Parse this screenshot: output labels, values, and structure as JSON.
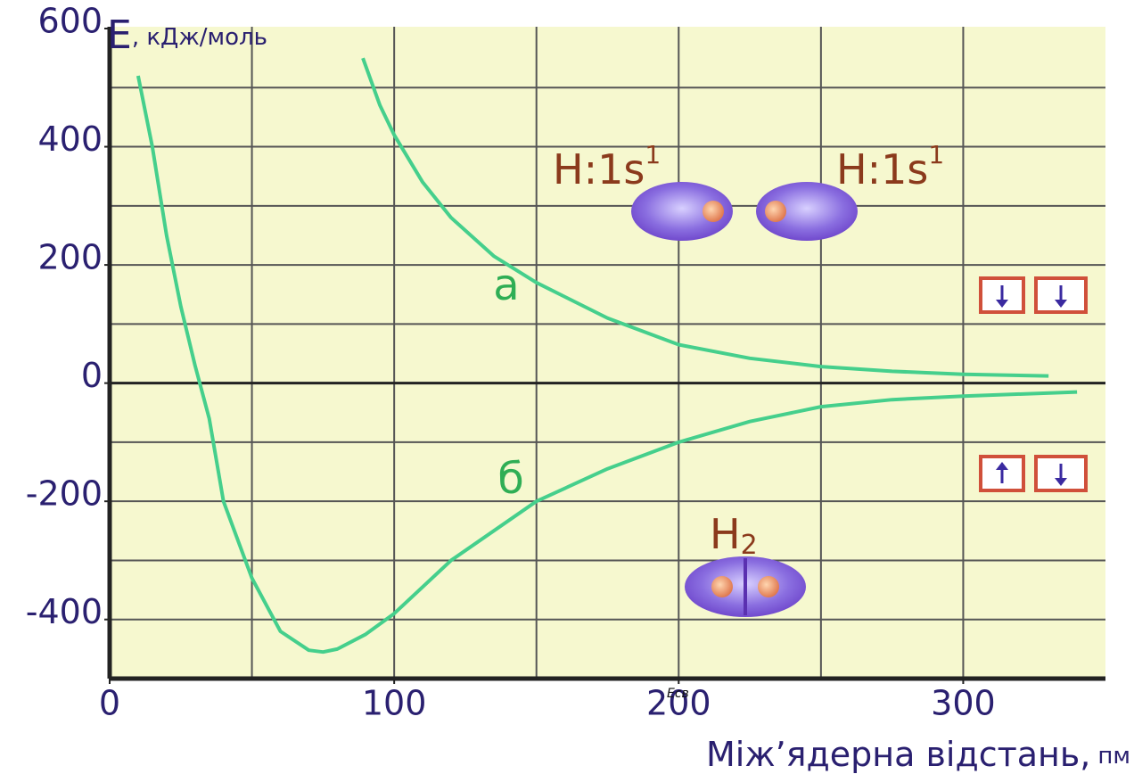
{
  "chart_data": {
    "type": "line",
    "ylabel": {
      "main": "E",
      "unit": ", кДж/моль"
    },
    "xlabel": {
      "main": "Міжʼядерна відстань,",
      "unit": "пм"
    },
    "note": "Eсв",
    "xlim": [
      0,
      350
    ],
    "ylim": [
      -500,
      600
    ],
    "xticks": [
      0,
      100,
      200,
      300
    ],
    "yticks": [
      -400,
      -200,
      0,
      200,
      400,
      600
    ],
    "xgrid": [
      50,
      100,
      150,
      200,
      250,
      300
    ],
    "ygrid": [
      -400,
      -300,
      -200,
      -100,
      100,
      200,
      300,
      400,
      500
    ],
    "grid": true,
    "series": [
      {
        "name": "а",
        "color": "#45cf8c",
        "x": [
          89,
          95,
          100,
          110,
          120,
          135,
          150,
          175,
          200,
          225,
          250,
          275,
          300,
          330
        ],
        "values": [
          550,
          470,
          420,
          340,
          280,
          215,
          170,
          110,
          65,
          42,
          28,
          20,
          15,
          12
        ]
      },
      {
        "name": "б",
        "color": "#45cf8c",
        "x": [
          10,
          15,
          20,
          25,
          30,
          35,
          40,
          50,
          60,
          70,
          75,
          80,
          90,
          100,
          120,
          150,
          175,
          200,
          225,
          250,
          275,
          300,
          340
        ],
        "values": [
          520,
          400,
          250,
          130,
          30,
          -60,
          -200,
          -330,
          -420,
          -452,
          -455,
          -450,
          -425,
          -390,
          -300,
          -200,
          -145,
          -100,
          -65,
          -40,
          -28,
          -22,
          -15
        ]
      }
    ],
    "annotations": [
      {
        "text": "H:1s",
        "sup": "1"
      },
      {
        "text": "H:1s",
        "sup": "1"
      },
      {
        "text": "H",
        "sub": "2"
      }
    ]
  }
}
